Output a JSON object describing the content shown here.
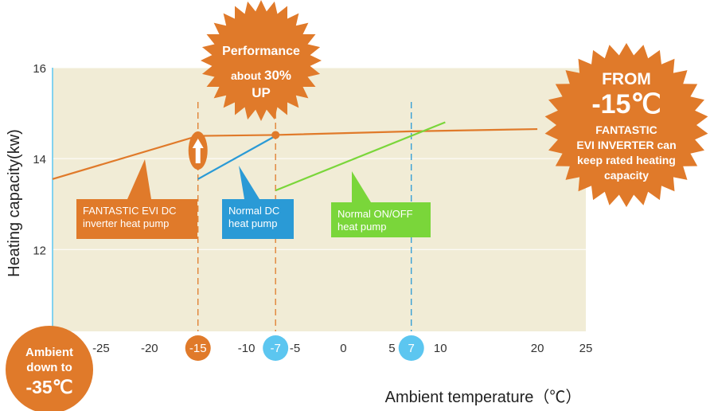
{
  "chart_data": {
    "type": "line",
    "title": "",
    "xlabel": "Ambient  temperature（℃）",
    "ylabel": "Heating capacity(kw)",
    "xlim": [
      -30,
      25
    ],
    "ylim": [
      10.2,
      16
    ],
    "x_ticks": [
      {
        "value": -25,
        "label": "-25",
        "highlight": false
      },
      {
        "value": -20,
        "label": "-20",
        "highlight": false
      },
      {
        "value": -15,
        "label": "-15",
        "highlight": "orange"
      },
      {
        "value": -10,
        "label": "-10",
        "highlight": false
      },
      {
        "value": -7,
        "label": "-7",
        "highlight": "blue"
      },
      {
        "value": -5,
        "label": "-5",
        "highlight": false
      },
      {
        "value": 0,
        "label": "0",
        "highlight": false
      },
      {
        "value": 5,
        "label": "5",
        "highlight": false
      },
      {
        "value": 7,
        "label": "7",
        "highlight": "blue"
      },
      {
        "value": 10,
        "label": "10",
        "highlight": false
      },
      {
        "value": 20,
        "label": "20",
        "highlight": false
      },
      {
        "value": 25,
        "label": "25",
        "highlight": false
      }
    ],
    "y_ticks": [
      {
        "value": 16,
        "label": "16"
      },
      {
        "value": 14,
        "label": "14"
      },
      {
        "value": 12,
        "label": "12"
      }
    ],
    "series": [
      {
        "name": "FANTASTIC EVI DC inverter heat pump",
        "color": "#e07a2a",
        "x": [
          -30,
          -15,
          -7,
          7,
          20
        ],
        "y": [
          13.55,
          14.5,
          14.52,
          14.6,
          14.65
        ]
      },
      {
        "name": "Normal DC heat pump",
        "color": "#2a9ad6",
        "x": [
          -15,
          -7
        ],
        "y": [
          13.55,
          14.5
        ]
      },
      {
        "name": "Normal ON/OFF heat pump",
        "color": "#7ad63a",
        "x": [
          -7,
          10.5
        ],
        "y": [
          13.3,
          14.8
        ]
      }
    ],
    "reference_lines": [
      {
        "x": -15,
        "color": "#e07a2a"
      },
      {
        "x": -7,
        "color": "#e07a2a"
      },
      {
        "x": 7,
        "color": "#2a9ad6"
      }
    ],
    "callouts": {
      "evi": {
        "text": [
          "FANTASTIC EVI DC",
          "inverter heat pump"
        ],
        "color": "#e07a2a"
      },
      "dc": {
        "text": [
          "Normal DC",
          "heat pump"
        ],
        "color": "#2a9ad6"
      },
      "onoff": {
        "text": [
          "Normal ON/OFF",
          "heat pump"
        ],
        "color": "#7ad63a"
      }
    },
    "badges": {
      "performance": {
        "line1": "Performance",
        "line2_prefix": "about ",
        "line2_value": "30%",
        "line3": "UP",
        "color": "#e07a2a"
      },
      "from": {
        "line1": "FROM",
        "line2": "-15℃",
        "lines": [
          "FANTASTIC",
          "EVI INVERTER can",
          "keep rated heating",
          "capacity"
        ],
        "color": "#e07a2a"
      },
      "ambient": {
        "line1": "Ambient",
        "line2": "down to",
        "line3": "-35℃",
        "color": "#e07a2a"
      }
    },
    "colors": {
      "plot_bg": "#f1ecd6",
      "orange": "#e07a2a",
      "blue": "#2a9ad6",
      "green": "#7ad63a",
      "light_blue": "#5cc6f0"
    }
  }
}
